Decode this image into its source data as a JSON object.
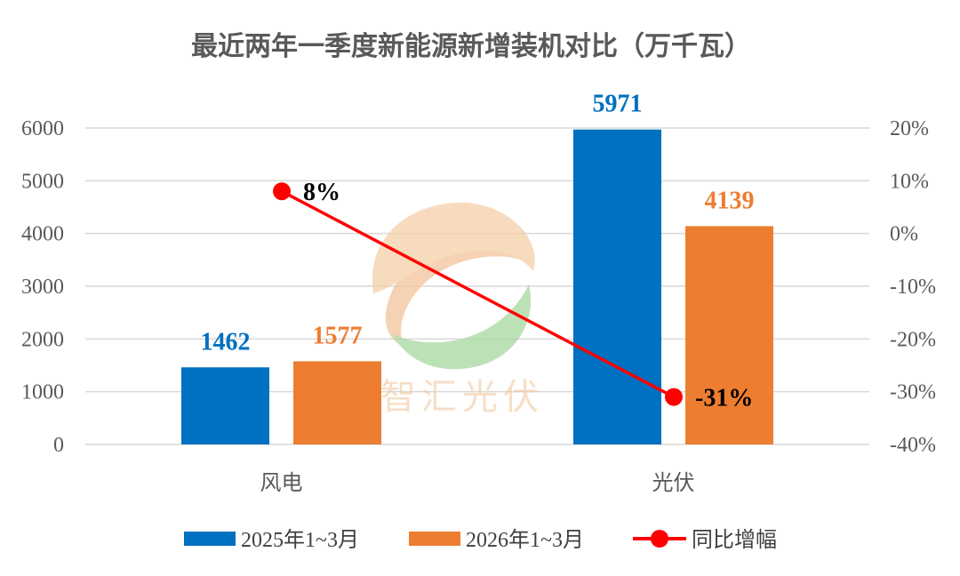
{
  "chart_data": {
    "type": "bar",
    "title": "最近两年一季度新能源新增装机对比（万千瓦）",
    "categories": [
      "风电",
      "光伏"
    ],
    "series": [
      {
        "name": "2025年1~3月",
        "type": "bar",
        "values": [
          1462,
          5971
        ],
        "color": "#0070C0"
      },
      {
        "name": "2026年1~3月",
        "type": "bar",
        "values": [
          1577,
          4139
        ],
        "color": "#ED7D31"
      },
      {
        "name": "同比增幅",
        "type": "line",
        "axis": "right",
        "values": [
          8,
          -31
        ],
        "labels": [
          "8%",
          "-31%"
        ],
        "color": "#FF0000"
      }
    ],
    "y_left": {
      "min": 0,
      "max": 6000,
      "step": 1000,
      "ticks": [
        "0",
        "1000",
        "2000",
        "3000",
        "4000",
        "5000",
        "6000"
      ]
    },
    "y_right": {
      "min": -40,
      "max": 20,
      "step": 10,
      "ticks": [
        "-40%",
        "-30%",
        "-20%",
        "-10%",
        "0%",
        "10%",
        "20%"
      ]
    },
    "grid": true,
    "legend_position": "bottom"
  },
  "watermark": {
    "text": "智汇光伏"
  }
}
